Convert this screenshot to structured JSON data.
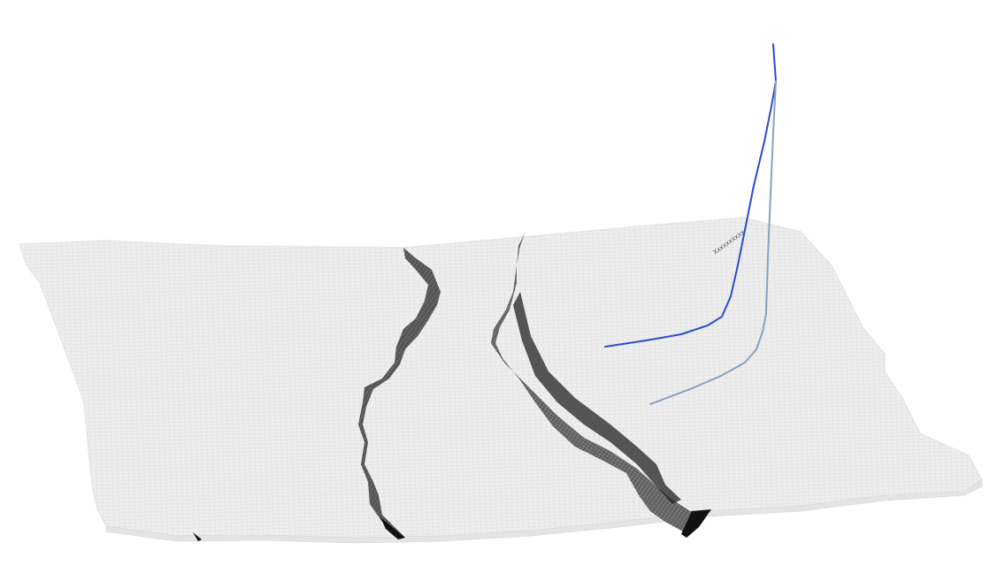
{
  "viewer": {
    "background": "#ffffff",
    "surface_fill": "#ececec",
    "surface_mesh": "#d2d2d2",
    "fault_fill": "#555555",
    "fault_mesh": "#1a1a1a",
    "fault_edge": "#111111"
  },
  "wells": [
    {
      "id": "well-1",
      "color": "#2a4ec9"
    },
    {
      "id": "well-2",
      "color": "#8aa0bd"
    }
  ],
  "well_label": {
    "text": "Xxxxxxxxxx"
  }
}
